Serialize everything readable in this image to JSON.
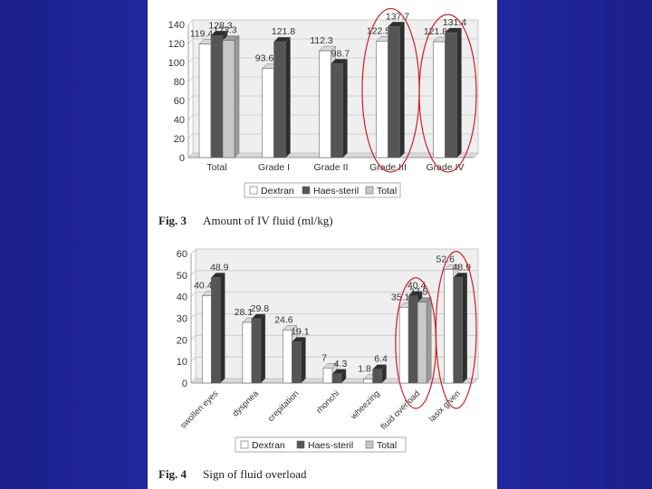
{
  "colors": {
    "background": "#2328a0",
    "dextran": "#ffffff",
    "haes": "#555555",
    "total": "#c8c8c8",
    "highlight_circle": "#cc1f1f"
  },
  "figures": [
    {
      "label": "Fig. 3",
      "caption": "Amount of IV fluid (ml/kg)"
    },
    {
      "label": "Fig. 4",
      "caption": "Sign of fluid overload"
    }
  ],
  "chart_data": [
    {
      "type": "bar",
      "title": "",
      "categories": [
        "Total",
        "Grade I",
        "Grade II",
        "Grade III",
        "Grade IV"
      ],
      "series": [
        {
          "name": "Dextran",
          "values": [
            119.4,
            93.6,
            112.3,
            122.5,
            121.8
          ]
        },
        {
          "name": "Haes-steril",
          "values": [
            128.3,
            121.8,
            98.7,
            137.7,
            131.4
          ]
        },
        {
          "name": "Total",
          "values": [
            123.3,
            null,
            null,
            null,
            null
          ]
        }
      ],
      "data_labels": [
        [
          "119.4",
          "93.6",
          "112.3",
          "122.5",
          "121.8"
        ],
        [
          "128.3",
          "121.8",
          "98.7",
          "137.7",
          "131.4"
        ],
        [
          "123.3",
          "",
          "",
          "",
          ""
        ]
      ],
      "ylim": [
        0,
        140
      ],
      "yticks": [
        "0",
        "20",
        "40",
        "60",
        "80",
        "100",
        "120",
        "140"
      ],
      "grid": true,
      "legend_position": "bottom",
      "highlighted_categories": [
        "Grade III",
        "Grade IV"
      ]
    },
    {
      "type": "bar",
      "title": "",
      "categories": [
        "swollen eyes",
        "dyspnea",
        "crepitation",
        "rhonchi",
        "wheezing",
        "fluid overload",
        "lasix given"
      ],
      "series": [
        {
          "name": "Dextran",
          "values": [
            40.4,
            28.1,
            24.6,
            7,
            1.8,
            35.1,
            52.6
          ]
        },
        {
          "name": "Haes-steril",
          "values": [
            48.9,
            29.8,
            19.1,
            4.3,
            6.4,
            40.4,
            48.9
          ]
        },
        {
          "name": "Total",
          "values": [
            null,
            null,
            null,
            null,
            null,
            37.5,
            null
          ]
        }
      ],
      "data_labels": [
        [
          "40.4",
          "28.1",
          "24.6",
          "7",
          "1.8",
          "35.1",
          "52.6"
        ],
        [
          "48.9",
          "29.8",
          "19.1",
          "4.3",
          "6.4",
          "40.4",
          "48.9"
        ],
        [
          "",
          "",
          "",
          "",
          "",
          "37.5",
          ""
        ]
      ],
      "ylim": [
        0,
        60
      ],
      "yticks": [
        "0",
        "10",
        "20",
        "30",
        "40",
        "50",
        "60"
      ],
      "grid": true,
      "legend_position": "bottom",
      "highlighted_categories": [
        "fluid overload",
        "lasix given"
      ]
    }
  ]
}
